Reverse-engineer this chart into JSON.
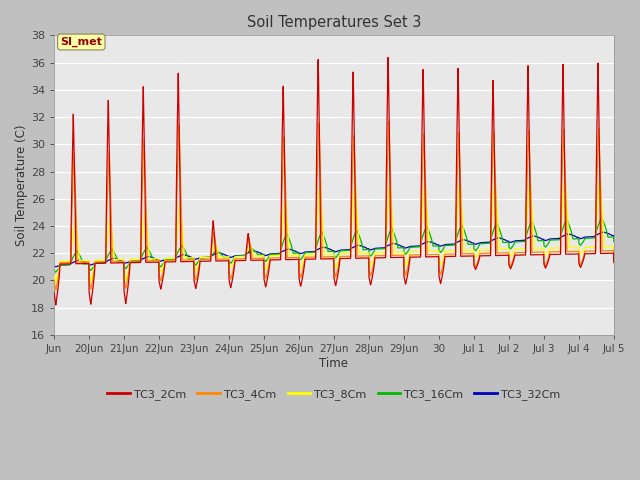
{
  "title": "Soil Temperatures Set 3",
  "xlabel": "Time",
  "ylabel": "Soil Temperature (C)",
  "ylim": [
    16,
    38
  ],
  "yticks": [
    16,
    18,
    20,
    22,
    24,
    26,
    28,
    30,
    32,
    34,
    36,
    38
  ],
  "fig_bg": "#c0c0c0",
  "plot_bg": "#e8e8e8",
  "legend_label": "SI_met",
  "series_colors": {
    "TC3_2Cm": "#cc0000",
    "TC3_4Cm": "#ff8800",
    "TC3_8Cm": "#ffff00",
    "TC3_16Cm": "#00bb00",
    "TC3_32Cm": "#0000bb"
  },
  "x_tick_labels": [
    "Jun",
    "20Jun",
    "21Jun",
    "22Jun",
    "23Jun",
    "24Jun",
    "25Jun",
    "26Jun",
    "27Jun",
    "28Jun",
    "29Jun",
    "30",
    "Jul 1",
    "Jul 2",
    "Jul 3",
    "Jul 4",
    "Jul 5"
  ]
}
